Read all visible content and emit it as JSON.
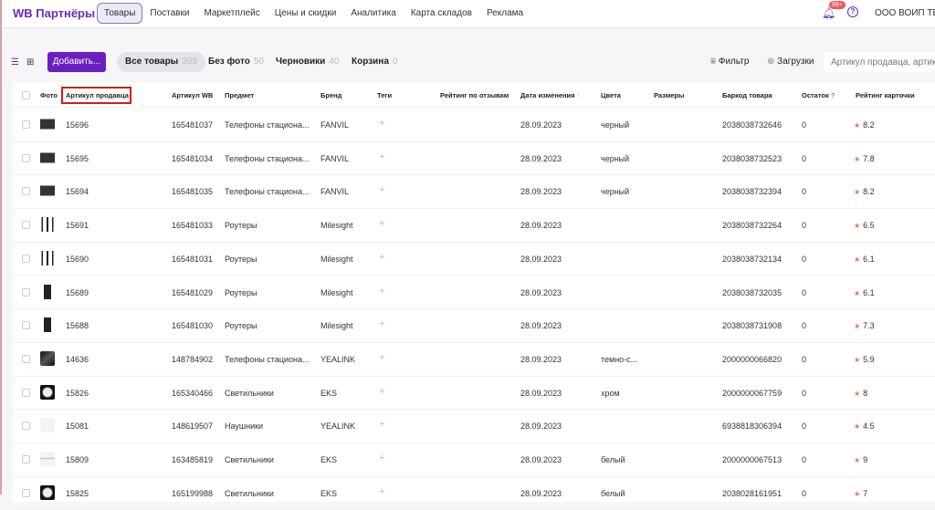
{
  "header": {
    "logo": "WB Партнёры",
    "nav": [
      "Товары",
      "Поставки",
      "Маркетплейс",
      "Цены и скидки",
      "Аналитика",
      "Карта складов",
      "Реклама"
    ],
    "notifications": "99+",
    "help": "?",
    "org": "ООО ВОИП ТЕЛ"
  },
  "toolbar": {
    "add": "Добавить...",
    "tabs": [
      {
        "label": "Все товары",
        "count": "399"
      },
      {
        "label": "Без фото",
        "count": "50"
      },
      {
        "label": "Черновики",
        "count": "40"
      },
      {
        "label": "Корзина",
        "count": "0"
      }
    ],
    "filter": "Фильтр",
    "uploads": "Загрузки",
    "search_placeholder": "Артикул продавца, артикул WB"
  },
  "columns": [
    "Фото",
    "Артикул продавца",
    "Артикул WB",
    "Предмет",
    "Бренд",
    "Теги",
    "Рейтинг по отзывам",
    "Дата изменения",
    "Цвета",
    "Размеры",
    "Баркод товара",
    "Остаток",
    "Рейтинг карточки"
  ],
  "sort_icon": "↑",
  "stock_hint": "?",
  "rows": [
    {
      "img": "phone",
      "sku": "15696",
      "wb": "165481037",
      "subject": "Телефоны стациона...",
      "brand": "FANVIL",
      "date": "28.09.2023",
      "color": "черный",
      "barcode": "2038038732646",
      "stock": "0",
      "rating": "8.2"
    },
    {
      "img": "phone",
      "sku": "15695",
      "wb": "165481034",
      "subject": "Телефоны стациона...",
      "brand": "FANVIL",
      "date": "28.09.2023",
      "color": "черный",
      "barcode": "2038038732523",
      "stock": "0",
      "rating": "7.8"
    },
    {
      "img": "phone",
      "sku": "15694",
      "wb": "165481035",
      "subject": "Телефоны стациона...",
      "brand": "FANVIL",
      "date": "28.09.2023",
      "color": "черный",
      "barcode": "2038038732394",
      "stock": "0",
      "rating": "8.2"
    },
    {
      "img": "router",
      "sku": "15691",
      "wb": "165481033",
      "subject": "Роутеры",
      "brand": "Milesight",
      "date": "28.09.2023",
      "color": "",
      "barcode": "2038038732264",
      "stock": "0",
      "rating": "6.5"
    },
    {
      "img": "router",
      "sku": "15690",
      "wb": "165481031",
      "subject": "Роутеры",
      "brand": "Milesight",
      "date": "28.09.2023",
      "color": "",
      "barcode": "2038038732134",
      "stock": "0",
      "rating": "6.1"
    },
    {
      "img": "box",
      "sku": "15689",
      "wb": "165481029",
      "subject": "Роутеры",
      "brand": "Milesight",
      "date": "28.09.2023",
      "color": "",
      "barcode": "2038038732035",
      "stock": "0",
      "rating": "6.1"
    },
    {
      "img": "box",
      "sku": "15688",
      "wb": "165481030",
      "subject": "Роутеры",
      "brand": "Milesight",
      "date": "28.09.2023",
      "color": "",
      "barcode": "2038038731908",
      "stock": "0",
      "rating": "7.3"
    },
    {
      "img": "phone2",
      "sku": "14636",
      "wb": "148784902",
      "subject": "Телефоны стациона...",
      "brand": "YEALINK",
      "date": "28.09.2023",
      "color": "темно-с...",
      "barcode": "2000000066820",
      "stock": "0",
      "rating": "5.9"
    },
    {
      "img": "lamp",
      "sku": "15826",
      "wb": "165340466",
      "subject": "Светильники",
      "brand": "EKS",
      "date": "28.09.2023",
      "color": "хром",
      "barcode": "2000000067759",
      "stock": "0",
      "rating": "8"
    },
    {
      "img": "none",
      "sku": "15081",
      "wb": "148619507",
      "subject": "Наушники",
      "brand": "YEALINK",
      "date": "28.09.2023",
      "color": "",
      "barcode": "6938818306394",
      "stock": "0",
      "rating": "4.5"
    },
    {
      "img": "light",
      "sku": "15809",
      "wb": "163485819",
      "subject": "Светильники",
      "brand": "EKS",
      "date": "28.09.2023",
      "color": "белый",
      "barcode": "2000000067513",
      "stock": "0",
      "rating": "9"
    },
    {
      "img": "lamp",
      "sku": "15825",
      "wb": "165199988",
      "subject": "Светильники",
      "brand": "EKS",
      "date": "28.09.2023",
      "color": "белый",
      "barcode": "2038028161951",
      "stock": "0",
      "rating": "7"
    }
  ],
  "tags_placeholder": "+",
  "colors": {
    "brand": "#6b1fc2",
    "star": "#e8744f",
    "highlight": "#d21c1c"
  }
}
